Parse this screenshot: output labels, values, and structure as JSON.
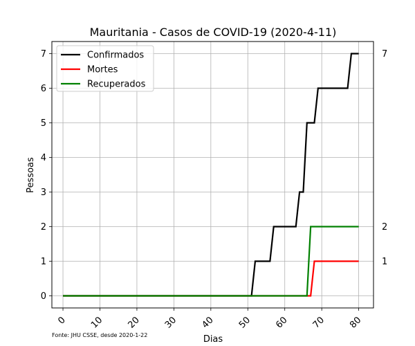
{
  "chart_data": {
    "type": "line",
    "title": "Mauritania - Casos de COVID-19 (2020-4-11)",
    "xlabel": "Dias",
    "ylabel": "Pessoas",
    "xlim": [
      -3,
      84
    ],
    "ylim": [
      -0.35,
      7.35
    ],
    "xticks": [
      0,
      10,
      20,
      30,
      40,
      50,
      60,
      70,
      80
    ],
    "yticks": [
      0,
      1,
      2,
      3,
      4,
      5,
      6,
      7
    ],
    "grid": true,
    "legend_position": "upper-left",
    "source_note": "Fonte: JHU CSSE, desde 2020-1-22",
    "end_labels": [
      "7",
      "2",
      "1"
    ],
    "series": [
      {
        "name": "Confirmados",
        "color": "#000000",
        "points": [
          [
            0,
            0
          ],
          [
            51,
            0
          ],
          [
            52,
            1
          ],
          [
            56,
            1
          ],
          [
            57,
            2
          ],
          [
            63,
            2
          ],
          [
            64,
            3
          ],
          [
            65,
            3
          ],
          [
            66,
            5
          ],
          [
            68,
            5
          ],
          [
            69,
            6
          ],
          [
            77,
            6
          ],
          [
            78,
            7
          ],
          [
            80,
            7
          ]
        ]
      },
      {
        "name": "Mortes",
        "color": "#ff0000",
        "points": [
          [
            0,
            0
          ],
          [
            67,
            0
          ],
          [
            68,
            1
          ],
          [
            80,
            1
          ]
        ]
      },
      {
        "name": "Recuperados",
        "color": "#008000",
        "points": [
          [
            0,
            0
          ],
          [
            66,
            0
          ],
          [
            67,
            2
          ],
          [
            80,
            2
          ]
        ]
      }
    ]
  }
}
